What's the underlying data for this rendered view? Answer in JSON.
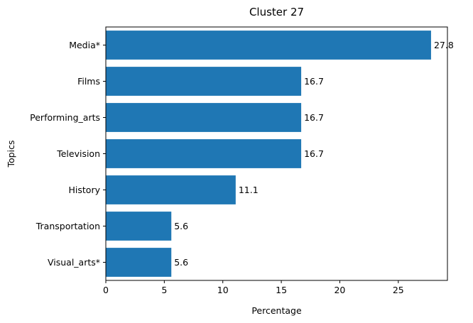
{
  "chart_data": {
    "type": "bar",
    "orientation": "horizontal",
    "title": "Cluster 27",
    "xlabel": "Percentage",
    "ylabel": "Topics",
    "categories": [
      "Media*",
      "Films",
      "Performing_arts",
      "Television",
      "History",
      "Transportation",
      "Visual_arts*"
    ],
    "values": [
      27.8,
      16.7,
      16.7,
      16.7,
      11.1,
      5.6,
      5.6
    ],
    "value_labels": [
      "27.8",
      "16.7",
      "16.7",
      "16.7",
      "11.1",
      "5.6",
      "5.6"
    ],
    "xlim": [
      0,
      29.2
    ],
    "xticks": [
      0,
      5,
      10,
      15,
      20,
      25
    ],
    "xtick_labels": [
      "0",
      "5",
      "10",
      "15",
      "20",
      "25"
    ],
    "grid": false,
    "bar_color": "#1f77b4"
  }
}
